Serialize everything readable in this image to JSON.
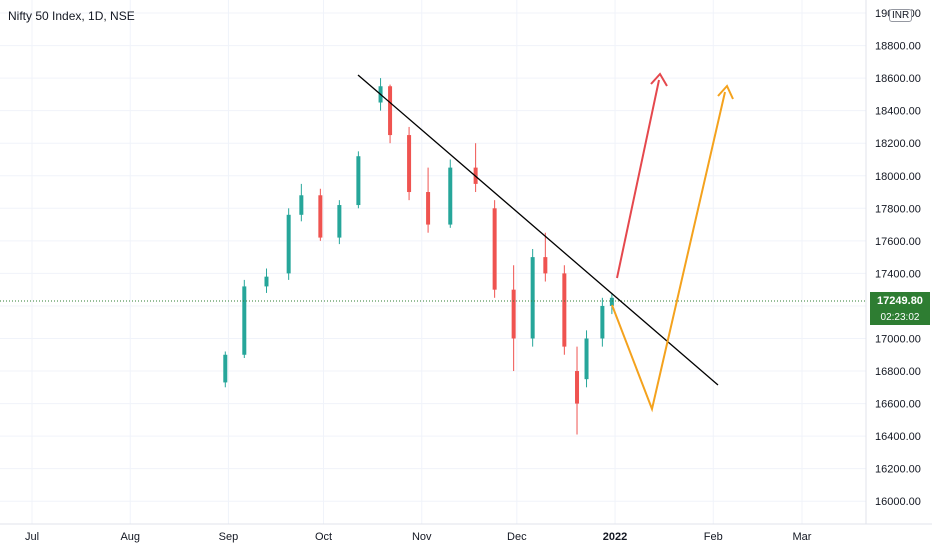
{
  "header": {
    "title": "Nifty 50 Index, 1D, NSE",
    "currency": "INR"
  },
  "price_badge": {
    "last_price": "17249.80",
    "countdown": "02:23:02"
  },
  "colors": {
    "up": "#26a69a",
    "down": "#ef5350",
    "trendline": "#000000",
    "arrow_red": "#e5484d",
    "arrow_orange": "#f4a21d",
    "price_line": "#2e7d32"
  },
  "chart_data": {
    "type": "candlestick",
    "title": "Nifty 50 Index, 1D, NSE",
    "x_ticks": [
      "Jul",
      "Aug",
      "Sep",
      "Oct",
      "Nov",
      "Dec",
      "2022",
      "Feb",
      "Mar"
    ],
    "y_ticks": [
      "16000.00",
      "16200.00",
      "16400.00",
      "16600.00",
      "16800.00",
      "17000.00",
      "17200.00",
      "17400.00",
      "17600.00",
      "17800.00",
      "18000.00",
      "18200.00",
      "18400.00",
      "18600.00",
      "18800.00",
      "19000.00"
    ],
    "ylim": [
      15860,
      19080
    ],
    "last_price": 17249.8,
    "series": [
      {
        "x": "2021-08-31",
        "o": 16730,
        "h": 16920,
        "l": 16700,
        "c": 16900
      },
      {
        "x": "2021-09-06",
        "o": 16900,
        "h": 17360,
        "l": 16880,
        "c": 17320
      },
      {
        "x": "2021-09-13",
        "o": 17320,
        "h": 17430,
        "l": 17280,
        "c": 17380
      },
      {
        "x": "2021-09-20",
        "o": 17400,
        "h": 17800,
        "l": 17360,
        "c": 17760
      },
      {
        "x": "2021-09-24",
        "o": 17760,
        "h": 17950,
        "l": 17720,
        "c": 17880
      },
      {
        "x": "2021-09-30",
        "o": 17880,
        "h": 17920,
        "l": 17600,
        "c": 17620
      },
      {
        "x": "2021-10-06",
        "o": 17620,
        "h": 17850,
        "l": 17580,
        "c": 17820
      },
      {
        "x": "2021-10-12",
        "o": 17820,
        "h": 18150,
        "l": 17800,
        "c": 18120
      },
      {
        "x": "2021-10-19",
        "o": 18450,
        "h": 18600,
        "l": 18400,
        "c": 18550
      },
      {
        "x": "2021-10-22",
        "o": 18550,
        "h": 18560,
        "l": 18200,
        "c": 18250
      },
      {
        "x": "2021-10-28",
        "o": 18250,
        "h": 18300,
        "l": 17850,
        "c": 17900
      },
      {
        "x": "2021-11-03",
        "o": 17900,
        "h": 18050,
        "l": 17650,
        "c": 17700
      },
      {
        "x": "2021-11-10",
        "o": 17700,
        "h": 18100,
        "l": 17680,
        "c": 18050
      },
      {
        "x": "2021-11-18",
        "o": 18050,
        "h": 18200,
        "l": 17900,
        "c": 17950
      },
      {
        "x": "2021-11-24",
        "o": 17800,
        "h": 17850,
        "l": 17250,
        "c": 17300
      },
      {
        "x": "2021-11-30",
        "o": 17300,
        "h": 17450,
        "l": 16800,
        "c": 17000
      },
      {
        "x": "2021-12-06",
        "o": 17000,
        "h": 17550,
        "l": 16950,
        "c": 17500
      },
      {
        "x": "2021-12-10",
        "o": 17500,
        "h": 17650,
        "l": 17350,
        "c": 17400
      },
      {
        "x": "2021-12-16",
        "o": 17400,
        "h": 17450,
        "l": 16900,
        "c": 16950
      },
      {
        "x": "2021-12-20",
        "o": 16800,
        "h": 16950,
        "l": 16410,
        "c": 16600
      },
      {
        "x": "2021-12-23",
        "o": 16750,
        "h": 17050,
        "l": 16700,
        "c": 17000
      },
      {
        "x": "2021-12-28",
        "o": 17000,
        "h": 17250,
        "l": 16950,
        "c": 17200
      },
      {
        "x": "2021-12-31",
        "o": 17200,
        "h": 17280,
        "l": 17150,
        "c": 17250
      }
    ]
  }
}
